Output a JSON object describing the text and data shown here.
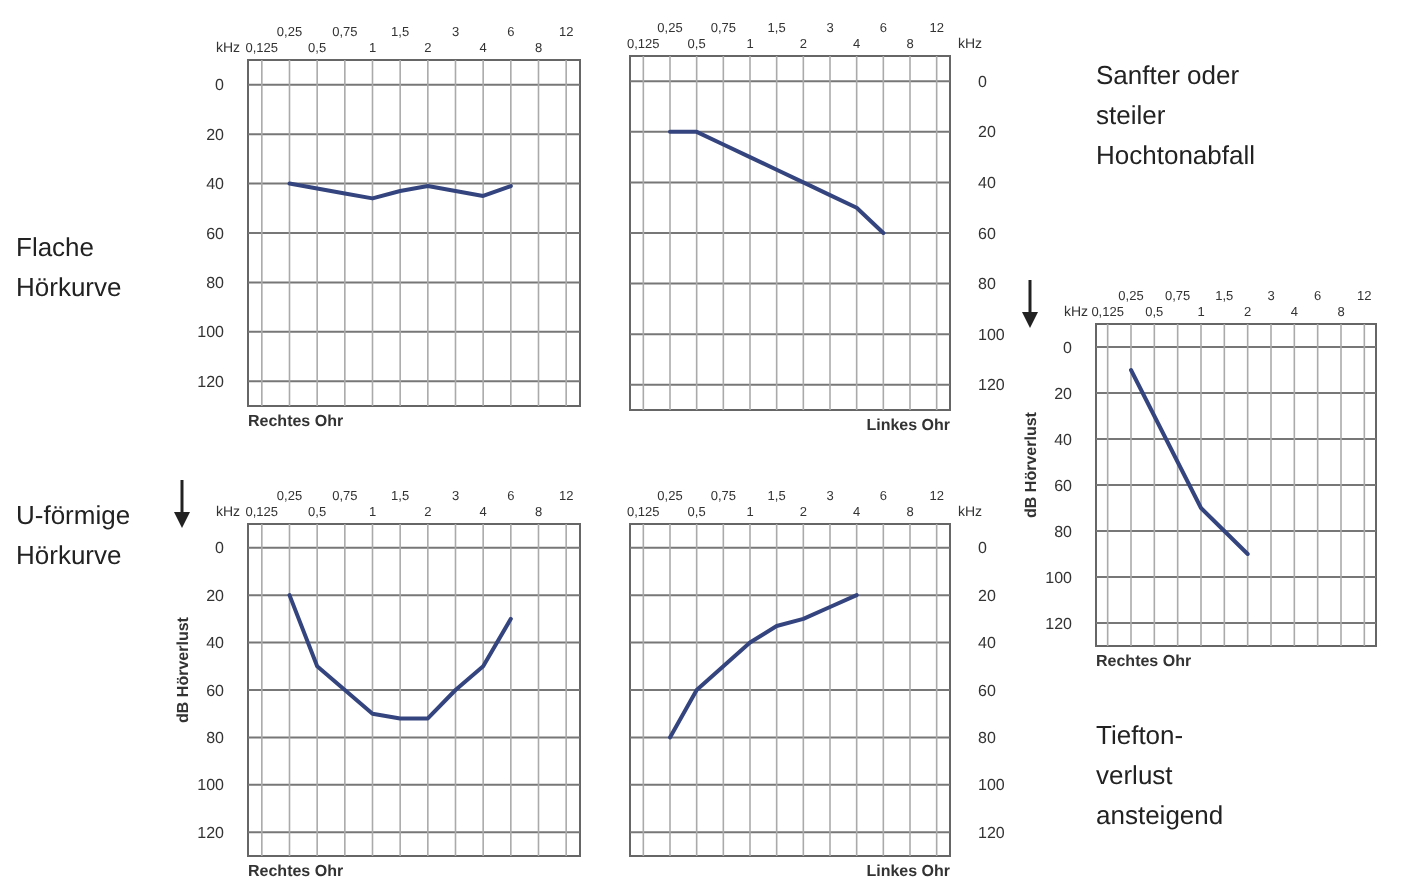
{
  "chart_data": [
    {
      "type": "line",
      "title": "Flache Hörkurve",
      "xlabel": "kHz",
      "categories": [
        "0,125",
        "0,25",
        "0,5",
        "0,75",
        "1",
        "1,5",
        "2",
        "3",
        "4",
        "6",
        "8",
        "12"
      ],
      "ylim": [
        130,
        -10
      ],
      "yticks": [
        0,
        20,
        40,
        60,
        80,
        100,
        120
      ],
      "grid": true,
      "annotations": [
        "Rechtes Ohr"
      ],
      "series": [
        {
          "color": "#34447e",
          "values": [
            null,
            40,
            42,
            44,
            46,
            43,
            41,
            43,
            45,
            41,
            null,
            null
          ]
        }
      ]
    },
    {
      "type": "line",
      "xlabel": "kHz",
      "categories": [
        "0,125",
        "0,25",
        "0,5",
        "0,75",
        "1",
        "1,5",
        "2",
        "3",
        "4",
        "6",
        "8",
        "12"
      ],
      "ylim": [
        130,
        -10
      ],
      "yticks": [
        0,
        20,
        40,
        60,
        80,
        100,
        120
      ],
      "grid": true,
      "annotations": [
        "Linkes Ohr"
      ],
      "series": [
        {
          "color": "#34447e",
          "values": [
            null,
            20,
            20,
            25,
            30,
            35,
            40,
            45,
            50,
            60,
            null,
            null
          ]
        }
      ]
    },
    {
      "type": "line",
      "title": "Sanfter oder steiler Hochtonabfall",
      "subtitle": "Tiefton-verlust ansteigend",
      "xlabel": "kHz",
      "ylabel": "dB Hörverlust",
      "categories": [
        "0,125",
        "0,25",
        "0,5",
        "0,75",
        "1",
        "1,5",
        "2",
        "3",
        "4",
        "6",
        "8",
        "12"
      ],
      "ylim": [
        130,
        -10
      ],
      "yticks": [
        0,
        20,
        40,
        60,
        80,
        100,
        120
      ],
      "grid": true,
      "annotations": [
        "Rechtes Ohr"
      ],
      "series": [
        {
          "color": "#34447e",
          "values": [
            null,
            10,
            30,
            50,
            70,
            80,
            90,
            null,
            null,
            null,
            null,
            null
          ]
        }
      ]
    },
    {
      "type": "line",
      "title": "U-förmige Hörkurve",
      "xlabel": "kHz",
      "ylabel": "dB Hörverlust",
      "categories": [
        "0,125",
        "0,25",
        "0,5",
        "0,75",
        "1",
        "1,5",
        "2",
        "3",
        "4",
        "6",
        "8",
        "12"
      ],
      "ylim": [
        130,
        -10
      ],
      "yticks": [
        0,
        20,
        40,
        60,
        80,
        100,
        120
      ],
      "grid": true,
      "annotations": [
        "Rechtes Ohr"
      ],
      "series": [
        {
          "color": "#34447e",
          "values": [
            null,
            20,
            50,
            60,
            70,
            72,
            72,
            60,
            50,
            30,
            null,
            null
          ]
        }
      ]
    },
    {
      "type": "line",
      "xlabel": "kHz",
      "categories": [
        "0,125",
        "0,25",
        "0,5",
        "0,75",
        "1",
        "1,5",
        "2",
        "3",
        "4",
        "6",
        "8",
        "12"
      ],
      "ylim": [
        130,
        -10
      ],
      "yticks": [
        0,
        20,
        40,
        60,
        80,
        100,
        120
      ],
      "grid": true,
      "annotations": [
        "Linkes Ohr"
      ],
      "series": [
        {
          "color": "#34447e",
          "values": [
            null,
            80,
            60,
            50,
            40,
            33,
            30,
            25,
            20,
            null,
            null,
            null
          ]
        }
      ]
    }
  ]
}
